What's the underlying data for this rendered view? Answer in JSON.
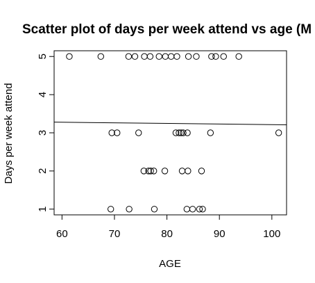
{
  "chart_data": {
    "type": "scatter",
    "title": "Scatter plot of days per week attend vs age (M",
    "xlabel": "AGE",
    "ylabel": "Days per week attend",
    "xlim": [
      58.5,
      102.8
    ],
    "ylim": [
      0.85,
      5.15
    ],
    "xticks": [
      60,
      70,
      80,
      90,
      100
    ],
    "yticks": [
      1,
      2,
      3,
      4,
      5
    ],
    "grid": false,
    "points": [
      {
        "x": 61.4,
        "y": 5
      },
      {
        "x": 67.4,
        "y": 5
      },
      {
        "x": 72.7,
        "y": 5
      },
      {
        "x": 73.9,
        "y": 5
      },
      {
        "x": 75.7,
        "y": 5
      },
      {
        "x": 76.8,
        "y": 5
      },
      {
        "x": 78.5,
        "y": 5
      },
      {
        "x": 79.7,
        "y": 5
      },
      {
        "x": 80.8,
        "y": 5
      },
      {
        "x": 81.9,
        "y": 5
      },
      {
        "x": 84.1,
        "y": 5
      },
      {
        "x": 85.6,
        "y": 5
      },
      {
        "x": 88.5,
        "y": 5
      },
      {
        "x": 89.3,
        "y": 5
      },
      {
        "x": 90.8,
        "y": 5
      },
      {
        "x": 93.7,
        "y": 5
      },
      {
        "x": 69.5,
        "y": 3
      },
      {
        "x": 70.5,
        "y": 3
      },
      {
        "x": 74.6,
        "y": 3
      },
      {
        "x": 81.7,
        "y": 3
      },
      {
        "x": 82.3,
        "y": 3
      },
      {
        "x": 82.7,
        "y": 3
      },
      {
        "x": 83.1,
        "y": 3
      },
      {
        "x": 83.9,
        "y": 3
      },
      {
        "x": 88.3,
        "y": 3
      },
      {
        "x": 101.3,
        "y": 3
      },
      {
        "x": 75.6,
        "y": 2
      },
      {
        "x": 76.5,
        "y": 2
      },
      {
        "x": 76.9,
        "y": 2
      },
      {
        "x": 77.5,
        "y": 2
      },
      {
        "x": 79.6,
        "y": 2
      },
      {
        "x": 82.9,
        "y": 2
      },
      {
        "x": 84.0,
        "y": 2
      },
      {
        "x": 86.6,
        "y": 2
      },
      {
        "x": 69.3,
        "y": 1
      },
      {
        "x": 72.8,
        "y": 1
      },
      {
        "x": 77.6,
        "y": 1
      },
      {
        "x": 83.8,
        "y": 1
      },
      {
        "x": 84.9,
        "y": 1
      },
      {
        "x": 86.2,
        "y": 1
      },
      {
        "x": 86.8,
        "y": 1
      }
    ],
    "regression_line": {
      "x": [
        58.5,
        102.8
      ],
      "y": [
        3.28,
        3.21
      ]
    }
  }
}
